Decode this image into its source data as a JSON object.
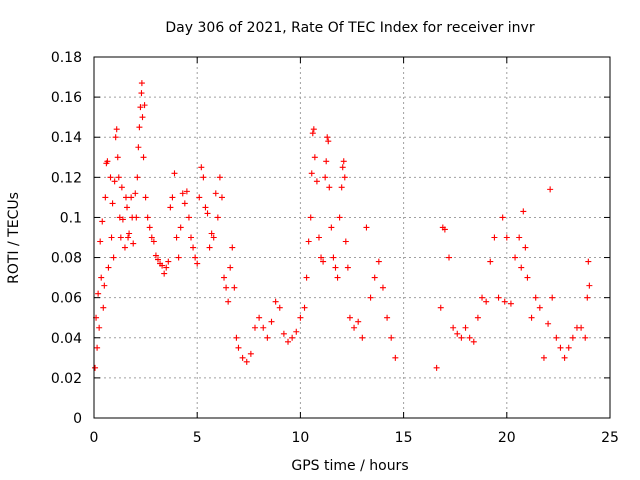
{
  "chart_data": {
    "type": "scatter",
    "title": "Day 306 of 2021, Rate Of TEC Index for receiver invr",
    "xlabel": "GPS time / hours",
    "ylabel": "ROTI / TECUs",
    "xlim": [
      0,
      25
    ],
    "ylim": [
      0,
      0.18
    ],
    "x_ticks": [
      0,
      5,
      10,
      15,
      20,
      25
    ],
    "x_tick_labels": [
      "0",
      "5",
      "10",
      "15",
      "20",
      "25"
    ],
    "y_ticks": [
      0,
      0.02,
      0.04,
      0.06,
      0.08,
      0.1,
      0.12,
      0.14,
      0.16,
      0.18
    ],
    "y_tick_labels": [
      "0",
      "0.02",
      "0.04",
      "0.06",
      "0.08",
      "0.1",
      "0.12",
      "0.14",
      "0.16",
      "0.18"
    ],
    "grid": true,
    "marker": "plus",
    "color": "#ff0000",
    "data_gap": [
      14.7,
      16.6
    ],
    "series": [
      {
        "name": "ROTI",
        "points": [
          [
            0.05,
            0.025
          ],
          [
            0.1,
            0.05
          ],
          [
            0.15,
            0.035
          ],
          [
            0.2,
            0.062
          ],
          [
            0.25,
            0.045
          ],
          [
            0.3,
            0.088
          ],
          [
            0.35,
            0.07
          ],
          [
            0.4,
            0.098
          ],
          [
            0.45,
            0.055
          ],
          [
            0.5,
            0.066
          ],
          [
            0.55,
            0.11
          ],
          [
            0.6,
            0.127
          ],
          [
            0.65,
            0.128
          ],
          [
            0.7,
            0.075
          ],
          [
            0.8,
            0.12
          ],
          [
            0.85,
            0.09
          ],
          [
            0.9,
            0.107
          ],
          [
            0.95,
            0.08
          ],
          [
            1.0,
            0.118
          ],
          [
            1.05,
            0.14
          ],
          [
            1.1,
            0.144
          ],
          [
            1.15,
            0.13
          ],
          [
            1.2,
            0.12
          ],
          [
            1.25,
            0.1
          ],
          [
            1.3,
            0.09
          ],
          [
            1.35,
            0.115
          ],
          [
            1.4,
            0.099
          ],
          [
            1.5,
            0.085
          ],
          [
            1.55,
            0.11
          ],
          [
            1.6,
            0.105
          ],
          [
            1.65,
            0.09
          ],
          [
            1.7,
            0.092
          ],
          [
            1.8,
            0.11
          ],
          [
            1.85,
            0.1
          ],
          [
            1.9,
            0.087
          ],
          [
            2.0,
            0.112
          ],
          [
            2.05,
            0.1
          ],
          [
            2.1,
            0.12
          ],
          [
            2.15,
            0.135
          ],
          [
            2.2,
            0.145
          ],
          [
            2.25,
            0.155
          ],
          [
            2.3,
            0.162
          ],
          [
            2.32,
            0.167
          ],
          [
            2.35,
            0.15
          ],
          [
            2.4,
            0.13
          ],
          [
            2.45,
            0.156
          ],
          [
            2.5,
            0.11
          ],
          [
            2.6,
            0.1
          ],
          [
            2.7,
            0.095
          ],
          [
            2.8,
            0.09
          ],
          [
            2.9,
            0.088
          ],
          [
            3.0,
            0.081
          ],
          [
            3.1,
            0.079
          ],
          [
            3.2,
            0.077
          ],
          [
            3.3,
            0.076
          ],
          [
            3.4,
            0.072
          ],
          [
            3.5,
            0.075
          ],
          [
            3.6,
            0.078
          ],
          [
            3.7,
            0.105
          ],
          [
            3.8,
            0.11
          ],
          [
            3.9,
            0.122
          ],
          [
            4.0,
            0.09
          ],
          [
            4.1,
            0.08
          ],
          [
            4.2,
            0.095
          ],
          [
            4.3,
            0.112
          ],
          [
            4.4,
            0.107
          ],
          [
            4.5,
            0.113
          ],
          [
            4.6,
            0.1
          ],
          [
            4.7,
            0.09
          ],
          [
            4.8,
            0.085
          ],
          [
            4.9,
            0.08
          ],
          [
            5.0,
            0.077
          ],
          [
            5.1,
            0.11
          ],
          [
            5.2,
            0.125
          ],
          [
            5.3,
            0.12
          ],
          [
            5.4,
            0.105
          ],
          [
            5.5,
            0.102
          ],
          [
            5.6,
            0.085
          ],
          [
            5.7,
            0.092
          ],
          [
            5.8,
            0.09
          ],
          [
            5.9,
            0.112
          ],
          [
            6.0,
            0.1
          ],
          [
            6.1,
            0.12
          ],
          [
            6.2,
            0.11
          ],
          [
            6.3,
            0.07
          ],
          [
            6.4,
            0.065
          ],
          [
            6.5,
            0.058
          ],
          [
            6.6,
            0.075
          ],
          [
            6.7,
            0.085
          ],
          [
            6.8,
            0.065
          ],
          [
            6.9,
            0.04
          ],
          [
            7.0,
            0.035
          ],
          [
            7.2,
            0.03
          ],
          [
            7.4,
            0.028
          ],
          [
            7.6,
            0.032
          ],
          [
            7.8,
            0.045
          ],
          [
            8.0,
            0.05
          ],
          [
            8.2,
            0.045
          ],
          [
            8.4,
            0.04
          ],
          [
            8.6,
            0.048
          ],
          [
            8.8,
            0.058
          ],
          [
            9.0,
            0.055
          ],
          [
            9.2,
            0.042
          ],
          [
            9.4,
            0.038
          ],
          [
            9.6,
            0.04
          ],
          [
            9.8,
            0.043
          ],
          [
            10.0,
            0.05
          ],
          [
            10.2,
            0.055
          ],
          [
            10.3,
            0.07
          ],
          [
            10.4,
            0.088
          ],
          [
            10.5,
            0.1
          ],
          [
            10.55,
            0.122
          ],
          [
            10.6,
            0.142
          ],
          [
            10.65,
            0.144
          ],
          [
            10.7,
            0.13
          ],
          [
            10.8,
            0.118
          ],
          [
            10.9,
            0.09
          ],
          [
            11.0,
            0.08
          ],
          [
            11.1,
            0.078
          ],
          [
            11.2,
            0.12
          ],
          [
            11.25,
            0.128
          ],
          [
            11.3,
            0.14
          ],
          [
            11.35,
            0.138
          ],
          [
            11.4,
            0.115
          ],
          [
            11.5,
            0.095
          ],
          [
            11.6,
            0.08
          ],
          [
            11.7,
            0.075
          ],
          [
            11.8,
            0.07
          ],
          [
            11.9,
            0.1
          ],
          [
            12.0,
            0.115
          ],
          [
            12.05,
            0.125
          ],
          [
            12.1,
            0.128
          ],
          [
            12.15,
            0.12
          ],
          [
            12.2,
            0.088
          ],
          [
            12.3,
            0.075
          ],
          [
            12.4,
            0.05
          ],
          [
            12.6,
            0.045
          ],
          [
            12.8,
            0.048
          ],
          [
            13.0,
            0.04
          ],
          [
            13.2,
            0.095
          ],
          [
            13.4,
            0.06
          ],
          [
            13.6,
            0.07
          ],
          [
            13.8,
            0.078
          ],
          [
            14.0,
            0.065
          ],
          [
            14.2,
            0.05
          ],
          [
            14.4,
            0.04
          ],
          [
            14.6,
            0.03
          ],
          [
            16.6,
            0.025
          ],
          [
            16.8,
            0.055
          ],
          [
            16.9,
            0.095
          ],
          [
            17.0,
            0.094
          ],
          [
            17.2,
            0.08
          ],
          [
            17.4,
            0.045
          ],
          [
            17.6,
            0.042
          ],
          [
            17.8,
            0.04
          ],
          [
            18.0,
            0.045
          ],
          [
            18.2,
            0.04
          ],
          [
            18.4,
            0.038
          ],
          [
            18.6,
            0.05
          ],
          [
            18.8,
            0.06
          ],
          [
            19.0,
            0.058
          ],
          [
            19.2,
            0.078
          ],
          [
            19.4,
            0.09
          ],
          [
            19.6,
            0.06
          ],
          [
            19.8,
            0.1
          ],
          [
            19.9,
            0.058
          ],
          [
            20.0,
            0.09
          ],
          [
            20.2,
            0.057
          ],
          [
            20.4,
            0.08
          ],
          [
            20.6,
            0.09
          ],
          [
            20.7,
            0.075
          ],
          [
            20.8,
            0.103
          ],
          [
            20.9,
            0.085
          ],
          [
            21.0,
            0.07
          ],
          [
            21.2,
            0.05
          ],
          [
            21.4,
            0.06
          ],
          [
            21.6,
            0.055
          ],
          [
            21.8,
            0.03
          ],
          [
            22.0,
            0.047
          ],
          [
            22.1,
            0.114
          ],
          [
            22.2,
            0.06
          ],
          [
            22.4,
            0.04
          ],
          [
            22.6,
            0.035
          ],
          [
            22.8,
            0.03
          ],
          [
            23.0,
            0.035
          ],
          [
            23.2,
            0.04
          ],
          [
            23.4,
            0.045
          ],
          [
            23.6,
            0.045
          ],
          [
            23.8,
            0.04
          ],
          [
            23.9,
            0.06
          ],
          [
            23.95,
            0.078
          ],
          [
            24.0,
            0.066
          ]
        ]
      }
    ]
  }
}
